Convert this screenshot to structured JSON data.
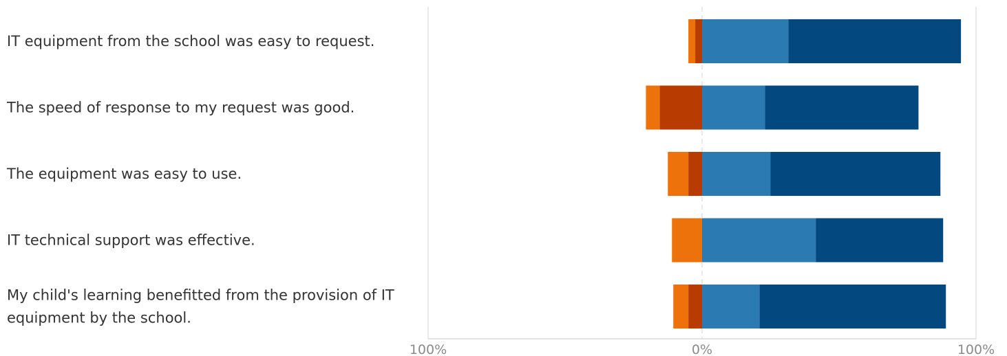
{
  "chart_data": {
    "type": "bar",
    "orientation": "horizontal",
    "stacked": "diverging",
    "title": "",
    "xlabel": "",
    "ylabel": "",
    "xlim": [
      -100,
      100
    ],
    "x_tick_labels": [
      "100%",
      "0%",
      "100%"
    ],
    "x_tick_values": [
      -100,
      0,
      100
    ],
    "grid": true,
    "categories": [
      "IT equipment from the school was easy to request.",
      "The speed of response to my request was good.",
      "The equipment was easy to use.",
      "IT technical support was effective.",
      "My child's learning benefitted from the provision of IT equipment by the school."
    ],
    "category_lines": [
      [
        "IT equipment from the school was easy to request."
      ],
      [
        "The speed of response to my request was good."
      ],
      [
        "The equipment was easy to use."
      ],
      [
        "IT technical support was effective."
      ],
      [
        "My child's learning benefitted from the provision of IT",
        "equipment by the school."
      ]
    ],
    "series": [
      {
        "color": "#b83c02",
        "side": "negative",
        "values": [
          2.5,
          15.5,
          5,
          0,
          5
        ]
      },
      {
        "color": "#ee720b",
        "side": "negative",
        "values": [
          2.5,
          5,
          7.5,
          11,
          5.5
        ]
      },
      {
        "color": "#2c7ab2",
        "side": "positive",
        "values": [
          31.5,
          23,
          25,
          41.5,
          21
        ]
      },
      {
        "color": "#03487f",
        "side": "positive",
        "values": [
          63,
          56,
          62,
          46.5,
          68
        ]
      }
    ]
  }
}
